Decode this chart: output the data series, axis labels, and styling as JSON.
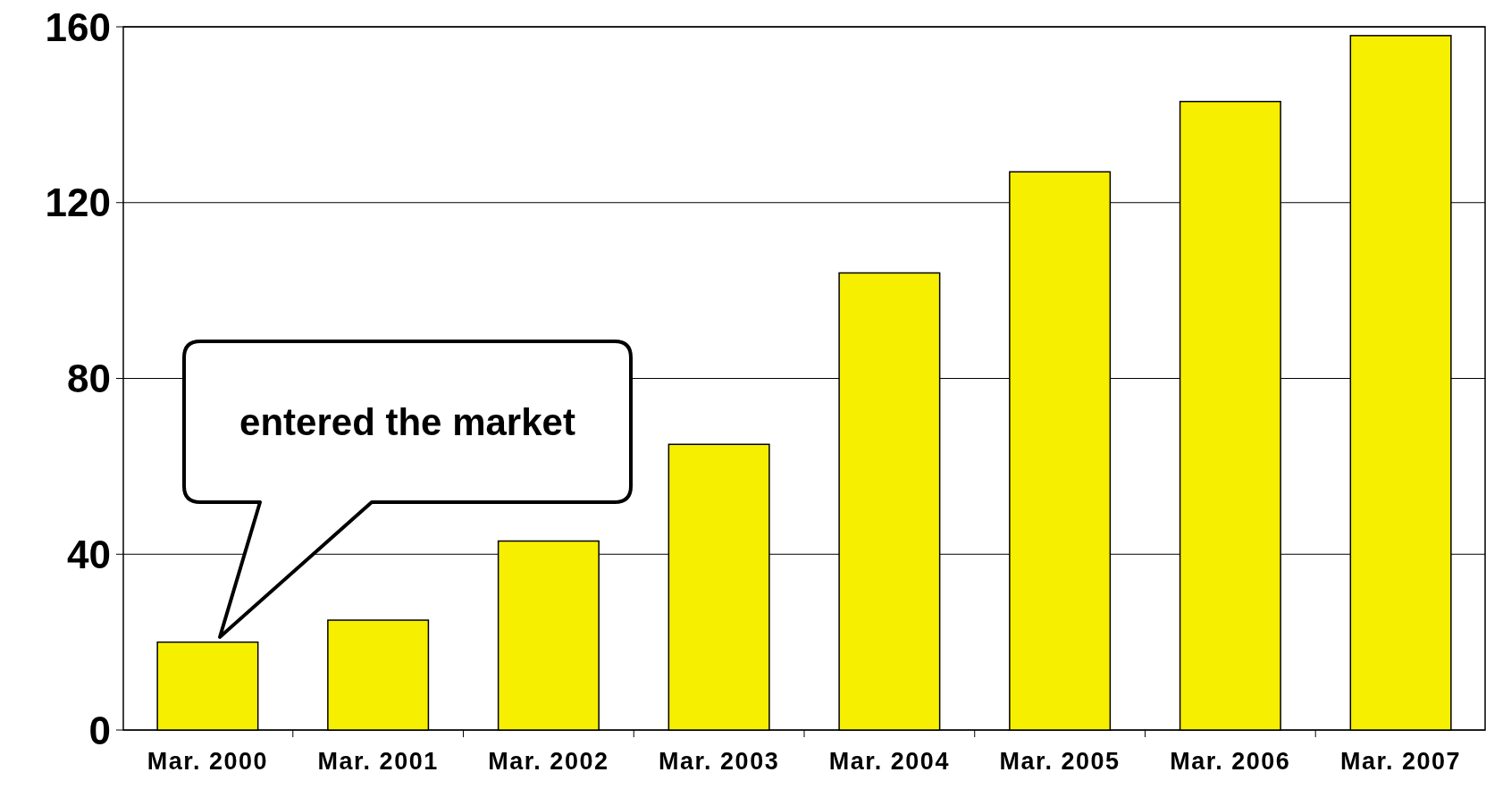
{
  "chart_data": {
    "type": "bar",
    "categories": [
      "Mar. 2000",
      "Mar. 2001",
      "Mar. 2002",
      "Mar. 2003",
      "Mar. 2004",
      "Mar. 2005",
      "Mar. 2006",
      "Mar. 2007"
    ],
    "values": [
      20,
      25,
      43,
      65,
      104,
      127,
      143,
      158
    ],
    "color": "#f7ef00",
    "ylim": [
      0,
      160
    ],
    "yticks": [
      0,
      40,
      80,
      120,
      160
    ],
    "grid": "y",
    "annotations": [
      "entered the market"
    ]
  }
}
